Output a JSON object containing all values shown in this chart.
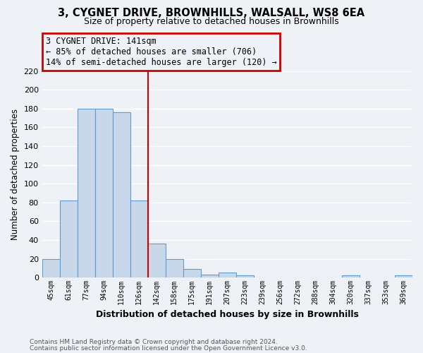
{
  "title": "3, CYGNET DRIVE, BROWNHILLS, WALSALL, WS8 6EA",
  "subtitle": "Size of property relative to detached houses in Brownhills",
  "xlabel": "Distribution of detached houses by size in Brownhills",
  "ylabel": "Number of detached properties",
  "bin_labels": [
    "45sqm",
    "61sqm",
    "77sqm",
    "94sqm",
    "110sqm",
    "126sqm",
    "142sqm",
    "158sqm",
    "175sqm",
    "191sqm",
    "207sqm",
    "223sqm",
    "239sqm",
    "256sqm",
    "272sqm",
    "288sqm",
    "304sqm",
    "320sqm",
    "337sqm",
    "353sqm",
    "369sqm"
  ],
  "bar_heights": [
    20,
    82,
    180,
    180,
    176,
    82,
    36,
    20,
    9,
    3,
    5,
    2,
    0,
    0,
    0,
    0,
    0,
    2,
    0,
    0,
    2
  ],
  "bar_color": "#c8d8e8",
  "bar_edge_color": "#5b9bd5",
  "vline_color": "#cc0000",
  "ylim_max": 220,
  "yticks": [
    0,
    20,
    40,
    60,
    80,
    100,
    120,
    140,
    160,
    180,
    200,
    220
  ],
  "annotation_title": "3 CYGNET DRIVE: 141sqm",
  "annotation_line1": "← 85% of detached houses are smaller (706)",
  "annotation_line2": "14% of semi-detached houses are larger (120) →",
  "footnote1": "Contains HM Land Registry data © Crown copyright and database right 2024.",
  "footnote2": "Contains public sector information licensed under the Open Government Licence v3.0.",
  "bg_color": "#eef2f7",
  "grid_color": "white",
  "vline_bin_index": 6
}
